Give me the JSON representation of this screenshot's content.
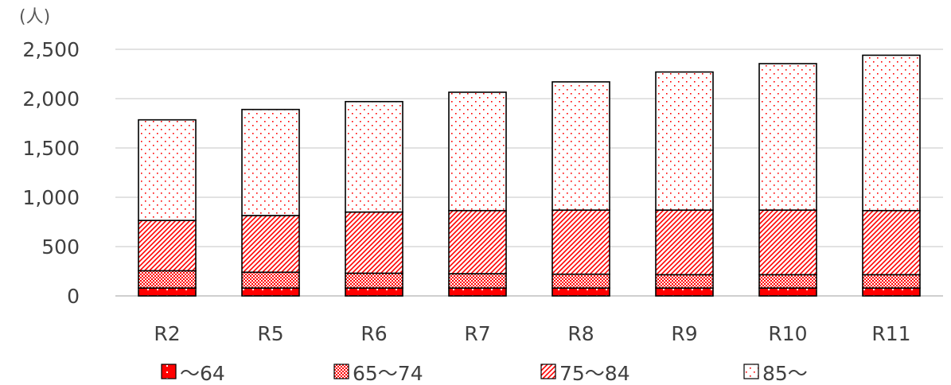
{
  "chart_data": {
    "type": "bar",
    "stacked": true,
    "unit_label": "(人)",
    "categories": [
      "R2",
      "R5",
      "R6",
      "R7",
      "R8",
      "R9",
      "R10",
      "R11"
    ],
    "series": [
      {
        "name": "～64",
        "pattern": "dots-on-red",
        "values": [
          80,
          80,
          80,
          80,
          80,
          80,
          80,
          80
        ]
      },
      {
        "name": "65～74",
        "pattern": "checker",
        "values": [
          175,
          160,
          150,
          145,
          140,
          135,
          135,
          135
        ]
      },
      {
        "name": "75～84",
        "pattern": "diagonal",
        "values": [
          510,
          575,
          620,
          640,
          650,
          655,
          655,
          650
        ]
      },
      {
        "name": "85～",
        "pattern": "sparse-dots",
        "values": [
          1020,
          1075,
          1120,
          1200,
          1300,
          1400,
          1485,
          1575
        ]
      }
    ],
    "ylim": [
      0,
      2500
    ],
    "yticks": [
      0,
      500,
      1000,
      1500,
      2000,
      2500
    ],
    "ytick_labels": [
      "0",
      "500",
      "1,000",
      "1,500",
      "2,000",
      "2,500"
    ],
    "grid": true,
    "legend_position": "bottom",
    "colors": {
      "accent": "#ff0000",
      "dark_accent": "#cc0000",
      "grid": "#d9d9d9",
      "text": "#404040"
    }
  }
}
